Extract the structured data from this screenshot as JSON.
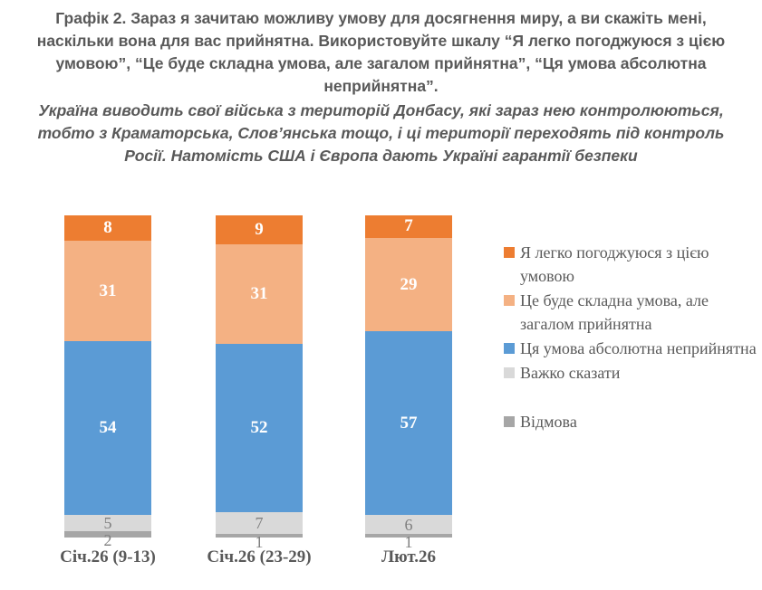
{
  "chart_data": {
    "type": "bar",
    "variant": "stacked-column-100",
    "title": "Графік 2. Зараз я зачитаю можливу умову для досягнення миру, а ви скажіть мені, наскільки вона для вас прийнятна. Використовуйте шкалу “Я легко погоджуюся з цією умовою”, “Це буде складна умова, але загалом прийнятна”, “Ця умова абсолютна неприйнятна”.",
    "subtitle": "Україна виводить свої війська з територій Донбасу, які зараз нею контролюються, тобто з Краматорська, Слов’янська тощо, і ці території переходять під контроль Росії. Натомість США і Європа дають Україні гарантії безпеки",
    "categories": [
      "Січ.26 (9-13)",
      "Січ.26 (23-29)",
      "Лют.26"
    ],
    "series": [
      {
        "name": "Я легко погоджуюся з цією умовою",
        "color": "#ED7D31",
        "label_color": "#FFFFFF",
        "values": [
          8,
          9,
          7
        ]
      },
      {
        "name": "Це буде складна умова, але загалом прийнятна",
        "color": "#F4B183",
        "label_color": "#FFFFFF",
        "values": [
          31,
          31,
          29
        ]
      },
      {
        "name": "Ця умова абсолютна неприйнятна",
        "color": "#5B9BD5",
        "label_color": "#FFFFFF",
        "values": [
          54,
          52,
          57
        ]
      },
      {
        "name": "Важко сказати",
        "color": "#D9D9D9",
        "label_color": "#7F7F7F",
        "values": [
          5,
          7,
          6
        ]
      },
      {
        "name": "Відмова",
        "color": "#A6A6A6",
        "label_color": "#7F7F7F",
        "values": [
          2,
          1,
          1
        ]
      }
    ],
    "stack_order": "first series on top",
    "ylim": [
      0,
      100
    ],
    "data_labels": "shown on every segment",
    "grid": false,
    "axes_visible": false,
    "legend_position": "right",
    "text_colors": {
      "heading": "#595959",
      "category_labels": "#595959",
      "legend": "#595959"
    }
  }
}
